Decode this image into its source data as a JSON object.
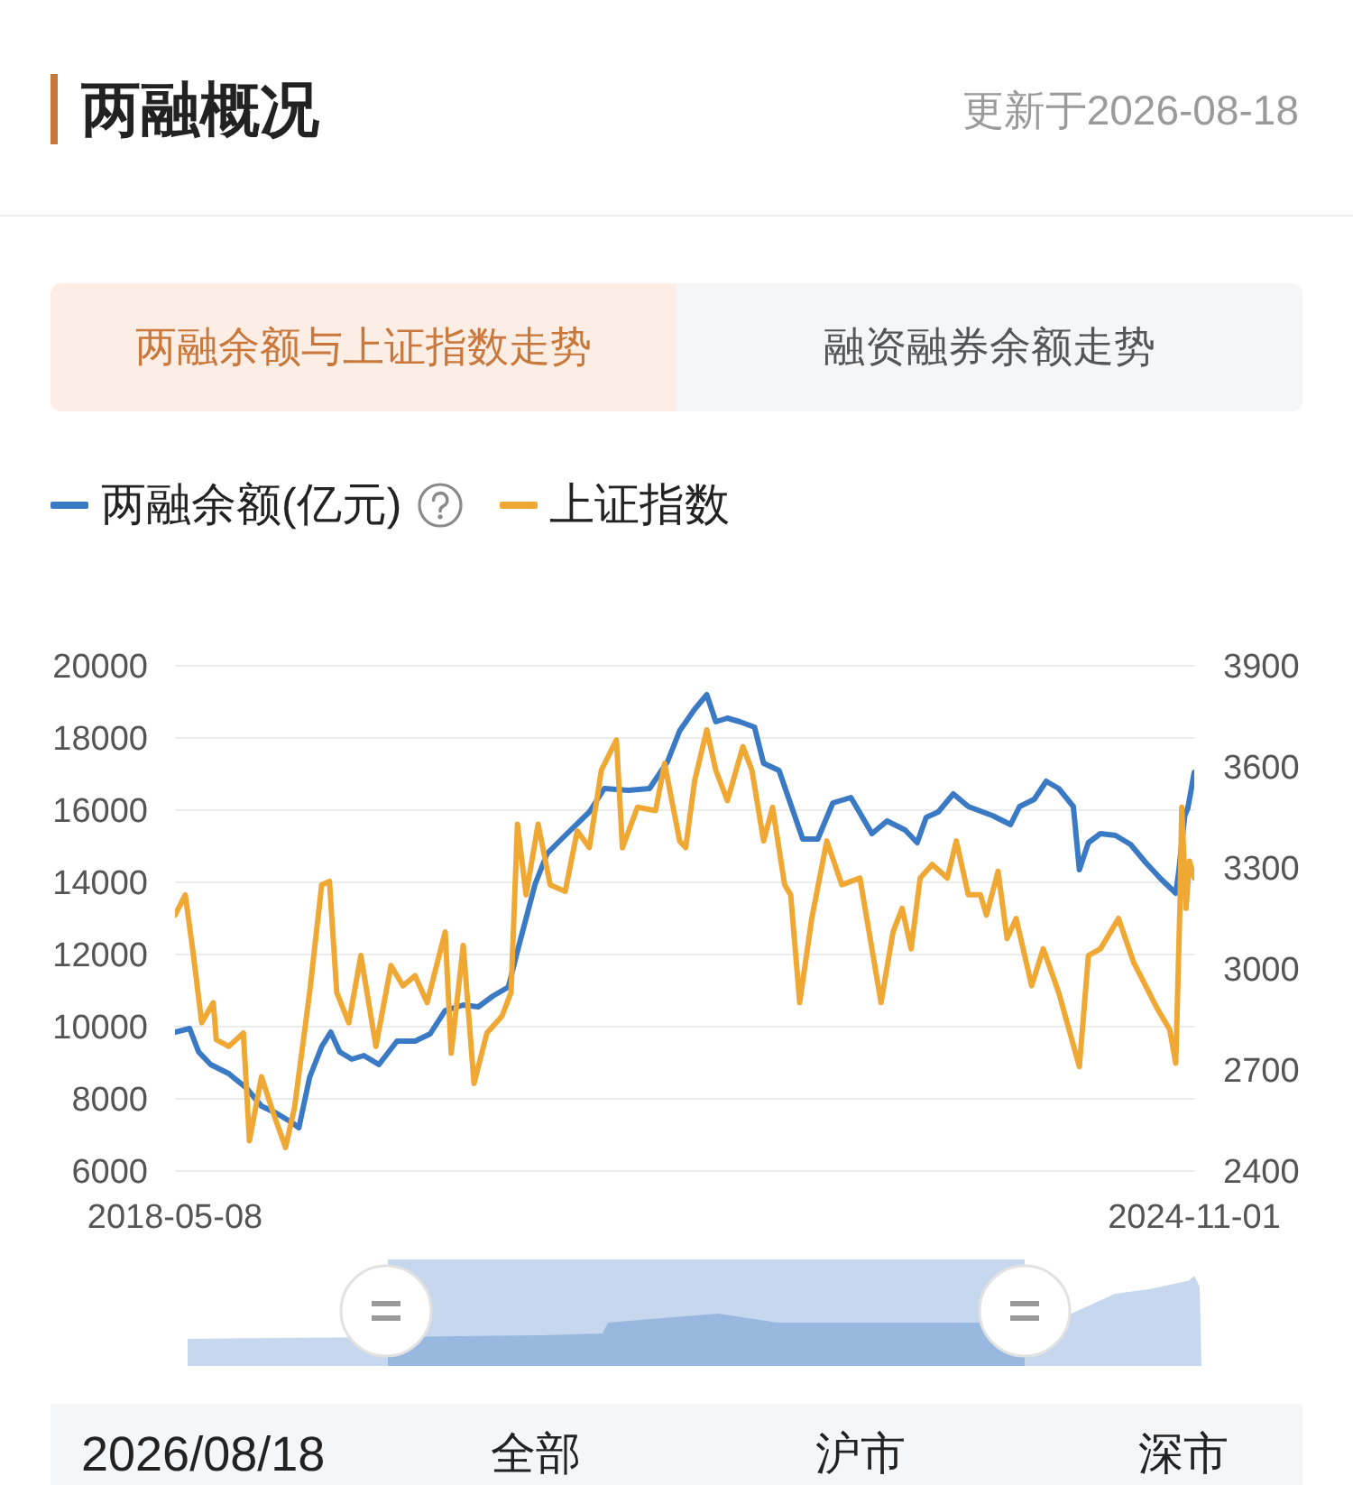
{
  "chart_data": {
    "type": "line",
    "title": "两融概况",
    "subtitle": "更新于2026-08-18",
    "annotations": [
      "两融余额与上证指数走势",
      "融资融券余额走势",
      "2026/08/18",
      "全部",
      "沪市",
      "深市"
    ],
    "xlim": [
      "2018-05-08",
      "2024-11-01"
    ],
    "xticks": [
      "2018-05-08",
      "2024-11-01"
    ],
    "ylim": [
      6000,
      20000
    ],
    "yticks": [
      6000,
      8000,
      10000,
      12000,
      14000,
      16000,
      18000,
      20000
    ],
    "y2lim": [
      2400,
      3900
    ],
    "y2ticks": [
      2400,
      2700,
      3000,
      3300,
      3600,
      3900
    ],
    "grid": "y",
    "legend": "top left",
    "marker": "none",
    "series": [
      {
        "name": "两融余额(亿元)",
        "color": "#3a79c4",
        "x": [
          "2018-05-08",
          "2018-06-11",
          "2018-07-02",
          "2018-07-30",
          "2018-09-10",
          "2018-10-21",
          "2018-11-25",
          "2018-12-30",
          "2019-02-03",
          "2019-02-20",
          "2019-03-17",
          "2019-04-14",
          "2019-05-05",
          "2019-05-26",
          "2019-06-23",
          "2019-07-21",
          "2019-08-25",
          "2019-10-06",
          "2019-11-17",
          "2019-12-22",
          "2020-01-26",
          "2020-03-08",
          "2020-04-12",
          "2020-05-16",
          "2020-06-21",
          "2020-07-12",
          "2020-08-22",
          "2020-09-19",
          "2020-10-31",
          "2020-12-26",
          "2021-01-30",
          "2021-03-27",
          "2021-05-15",
          "2021-06-26",
          "2021-07-24",
          "2021-08-28",
          "2021-09-25",
          "2021-10-16",
          "2021-11-12",
          "2021-12-11",
          "2022-01-14",
          "2022-02-04",
          "2022-03-12",
          "2022-05-06",
          "2022-06-10",
          "2022-07-15",
          "2022-08-26",
          "2022-10-14",
          "2022-11-18",
          "2022-12-30",
          "2023-01-27",
          "2023-02-17",
          "2023-03-17",
          "2023-04-21",
          "2023-05-26",
          "2023-07-21",
          "2023-09-01",
          "2023-09-22",
          "2023-10-26",
          "2023-11-23",
          "2023-12-22",
          "2024-01-25",
          "2024-02-08",
          "2024-02-29",
          "2024-03-28",
          "2024-05-02",
          "2024-06-06",
          "2024-07-11",
          "2024-08-15",
          "2024-09-19",
          "2024-09-26",
          "2024-10-10",
          "2024-10-17",
          "2024-11-01"
        ],
        "values": [
          9850,
          9950,
          9300,
          8950,
          8700,
          8300,
          7800,
          7600,
          7350,
          7200,
          8600,
          9450,
          9850,
          9300,
          9100,
          9200,
          8950,
          9600,
          9600,
          9800,
          10450,
          10600,
          10550,
          10850,
          11100,
          12100,
          13950,
          14800,
          15300,
          15950,
          16600,
          16550,
          16600,
          17350,
          18200,
          18800,
          19200,
          18450,
          18550,
          18450,
          18300,
          17300,
          17100,
          15200,
          15200,
          16200,
          16350,
          15350,
          15700,
          15450,
          15100,
          15800,
          15950,
          16450,
          16100,
          15850,
          15600,
          16100,
          16300,
          16800,
          16600,
          16100,
          14350,
          15100,
          15350,
          15300,
          15050,
          14550,
          14100,
          13700,
          14300,
          15850,
          16050,
          17050
        ]
      },
      {
        "name": "上证指数",
        "color": "#f0a835",
        "axis": "y2",
        "x": [
          "2018-05-08",
          "2018-06-01",
          "2018-06-20",
          "2018-07-09",
          "2018-08-05",
          "2018-08-12",
          "2018-09-10",
          "2018-10-14",
          "2018-10-28",
          "2018-11-25",
          "2018-12-23",
          "2019-01-20",
          "2019-02-10",
          "2019-03-17",
          "2019-04-14",
          "2019-05-02",
          "2019-05-19",
          "2019-06-16",
          "2019-07-14",
          "2019-08-18",
          "2019-09-22",
          "2019-10-20",
          "2019-11-17",
          "2019-12-15",
          "2020-01-26",
          "2020-02-09",
          "2020-03-08",
          "2020-04-02",
          "2020-05-02",
          "2020-06-06",
          "2020-06-27",
          "2020-07-12",
          "2020-08-01",
          "2020-08-29",
          "2020-09-26",
          "2020-10-31",
          "2020-11-28",
          "2020-12-26",
          "2021-01-23",
          "2021-02-27",
          "2021-03-13",
          "2021-04-17",
          "2021-05-29",
          "2021-06-19",
          "2021-07-24",
          "2021-08-07",
          "2021-08-28",
          "2021-09-25",
          "2021-10-16",
          "2021-11-12",
          "2021-12-18",
          "2022-01-08",
          "2022-02-04",
          "2022-02-25",
          "2022-03-25",
          "2022-04-08",
          "2022-04-29",
          "2022-05-27",
          "2022-07-01",
          "2022-08-05",
          "2022-09-16",
          "2022-11-04",
          "2022-12-02",
          "2022-12-23",
          "2023-01-13",
          "2023-02-03",
          "2023-03-03",
          "2023-04-07",
          "2023-04-28",
          "2023-05-26",
          "2023-06-23",
          "2023-07-07",
          "2023-08-03",
          "2023-08-24",
          "2023-09-14",
          "2023-10-20",
          "2023-11-16",
          "2023-12-22",
          "2024-02-08",
          "2024-02-29",
          "2024-03-28",
          "2024-05-09",
          "2024-06-13",
          "2024-07-11",
          "2024-08-08",
          "2024-09-05",
          "2024-09-19",
          "2024-09-29",
          "2024-10-03",
          "2024-10-13",
          "2024-10-21",
          "2024-11-01"
        ],
        "values": [
          3160,
          3220,
          3040,
          2840,
          2900,
          2790,
          2770,
          2810,
          2490,
          2680,
          2570,
          2470,
          2590,
          2930,
          3250,
          3260,
          2930,
          2840,
          3040,
          2770,
          3010,
          2950,
          2980,
          2900,
          3110,
          2750,
          3070,
          2660,
          2810,
          2860,
          2930,
          3430,
          3220,
          3430,
          3250,
          3230,
          3410,
          3360,
          3590,
          3680,
          3360,
          3480,
          3470,
          3610,
          3380,
          3360,
          3560,
          3710,
          3590,
          3500,
          3660,
          3590,
          3380,
          3480,
          3250,
          3220,
          2900,
          3150,
          3380,
          3250,
          3270,
          2900,
          3110,
          3180,
          3060,
          3270,
          3310,
          3270,
          3380,
          3220,
          3220,
          3160,
          3290,
          3090,
          3150,
          2950,
          3060,
          2930,
          2710,
          3040,
          3060,
          3150,
          3020,
          2950,
          2880,
          2820,
          2720,
          3200,
          3480,
          3180,
          3320,
          3270
        ]
      }
    ]
  }
}
